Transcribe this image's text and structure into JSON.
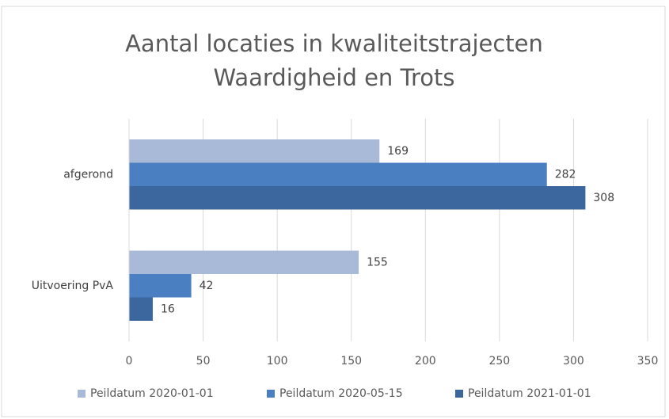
{
  "chart_data": {
    "type": "hbar",
    "title": [
      "Aantal locaties in kwaliteitstrajecten",
      "Waardigheid en Trots"
    ],
    "categories": [
      "afgerond",
      "Uitvoering PvA"
    ],
    "series": [
      {
        "name": "Peildatum 2020-01-01",
        "color": "#a9b9d8",
        "values": [
          169,
          155
        ]
      },
      {
        "name": "Peildatum 2020-05-15",
        "color": "#4a7fc1",
        "values": [
          282,
          42
        ]
      },
      {
        "name": "Peildatum 2021-01-01",
        "color": "#3c679e",
        "values": [
          308,
          16
        ]
      }
    ],
    "xlim": [
      0,
      350
    ],
    "xticks": [
      0,
      50,
      100,
      150,
      200,
      250,
      300,
      350
    ],
    "grid": true,
    "legend": "bottom"
  }
}
